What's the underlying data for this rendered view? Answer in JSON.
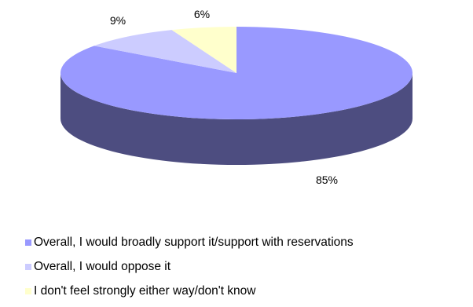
{
  "chart_data": {
    "type": "pie",
    "style": "3d",
    "slices": [
      {
        "label": "Overall, I would broadly support it/support with reservations",
        "value": 85,
        "display": "85%",
        "color": "#9999ff",
        "side_color": "#4d4d80"
      },
      {
        "label": "Overall, I would oppose it",
        "value": 9,
        "display": "9%",
        "color": "#ccccff",
        "side_color": "#8a8ab3"
      },
      {
        "label": "I don't feel strongly either way/don't know",
        "value": 6,
        "display": "6%",
        "color": "#ffffcc",
        "side_color": "#b3b38f"
      }
    ],
    "legend_position": "bottom-left"
  }
}
